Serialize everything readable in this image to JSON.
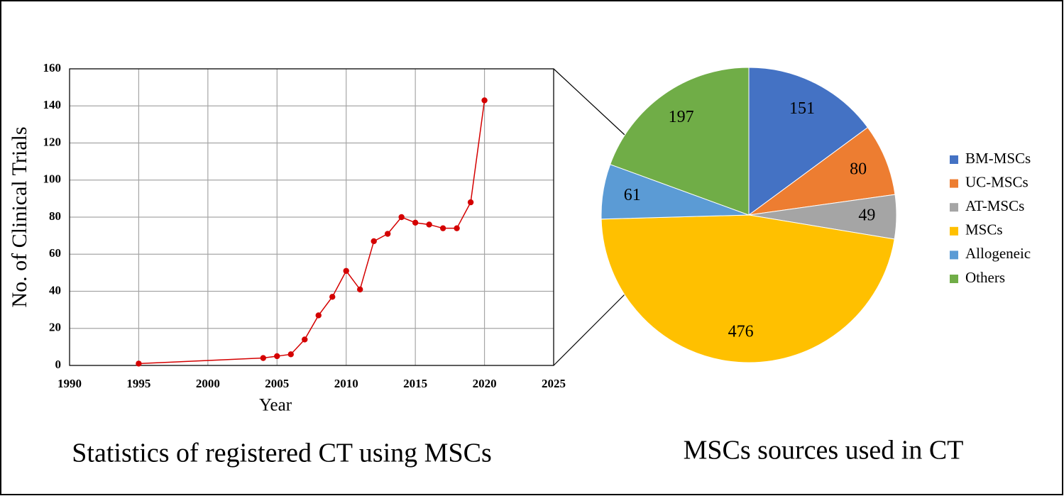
{
  "chart_data": [
    {
      "type": "line",
      "title": "Statistics of registered CT using MSCs",
      "x_label": "Year",
      "y_label": "No. of Clinical Trials",
      "x": [
        1995,
        2004,
        2005,
        2006,
        2007,
        2008,
        2009,
        2010,
        2011,
        2012,
        2013,
        2014,
        2015,
        2016,
        2017,
        2018,
        2019,
        2020
      ],
      "values": [
        1,
        4,
        5,
        6,
        14,
        27,
        37,
        51,
        41,
        67,
        71,
        80,
        77,
        76,
        74,
        74,
        88,
        143
      ],
      "color": "#d40000",
      "xlim": [
        1990,
        2025
      ],
      "xticks": [
        1990,
        1995,
        2000,
        2005,
        2010,
        2015,
        2020,
        2025
      ],
      "ylim": [
        0,
        160
      ],
      "yticks": [
        0,
        20,
        40,
        60,
        80,
        100,
        120,
        140,
        160
      ],
      "grid": true
    },
    {
      "type": "pie",
      "title": "MSCs sources used in CT",
      "categories": [
        "BM-MSCs",
        "UC-MSCs",
        "AT-MSCs",
        "MSCs",
        "Allogeneic",
        "Others"
      ],
      "values": [
        151,
        80,
        49,
        476,
        61,
        197
      ],
      "colors": [
        "#4472c4",
        "#ed7d31",
        "#a5a5a5",
        "#ffc000",
        "#5b9bd5",
        "#70ad47"
      ],
      "legend": "right"
    }
  ]
}
